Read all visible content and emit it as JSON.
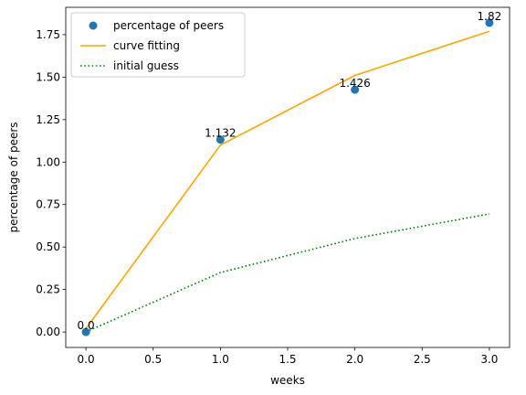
{
  "chart_data": {
    "type": "line",
    "title": "",
    "xlabel": "weeks",
    "ylabel": "percentage of peers",
    "xlim": [
      -0.15,
      3.15
    ],
    "ylim": [
      -0.091,
      1.911
    ],
    "xticks": [
      0.0,
      0.5,
      1.0,
      1.5,
      2.0,
      2.5,
      3.0
    ],
    "xtick_labels": [
      "0.0",
      "0.5",
      "1.0",
      "1.5",
      "2.0",
      "2.5",
      "3.0"
    ],
    "yticks": [
      0.0,
      0.25,
      0.5,
      0.75,
      1.0,
      1.25,
      1.5,
      1.75
    ],
    "ytick_labels": [
      "0.00",
      "0.25",
      "0.50",
      "0.75",
      "1.00",
      "1.25",
      "1.50",
      "1.75"
    ],
    "grid": false,
    "legend_position": "top-left",
    "series": [
      {
        "name": "percentage of peers",
        "kind": "scatter",
        "color": "#1f77b4",
        "x": [
          0,
          1,
          2,
          3
        ],
        "y": [
          0.0,
          1.132,
          1.426,
          1.82
        ],
        "labels": [
          "0.0",
          "1.132",
          "1.426",
          "1.82"
        ]
      },
      {
        "name": "curve fitting",
        "kind": "line",
        "style": "solid",
        "color": "#ffa500",
        "x": [
          0,
          1,
          2,
          3
        ],
        "y": [
          0.02,
          1.1,
          1.51,
          1.77
        ]
      },
      {
        "name": "initial guess",
        "kind": "line",
        "style": "dotted",
        "color": "#008000",
        "x": [
          0,
          1,
          2,
          3
        ],
        "y": [
          0.0,
          0.35,
          0.55,
          0.695
        ]
      }
    ]
  }
}
